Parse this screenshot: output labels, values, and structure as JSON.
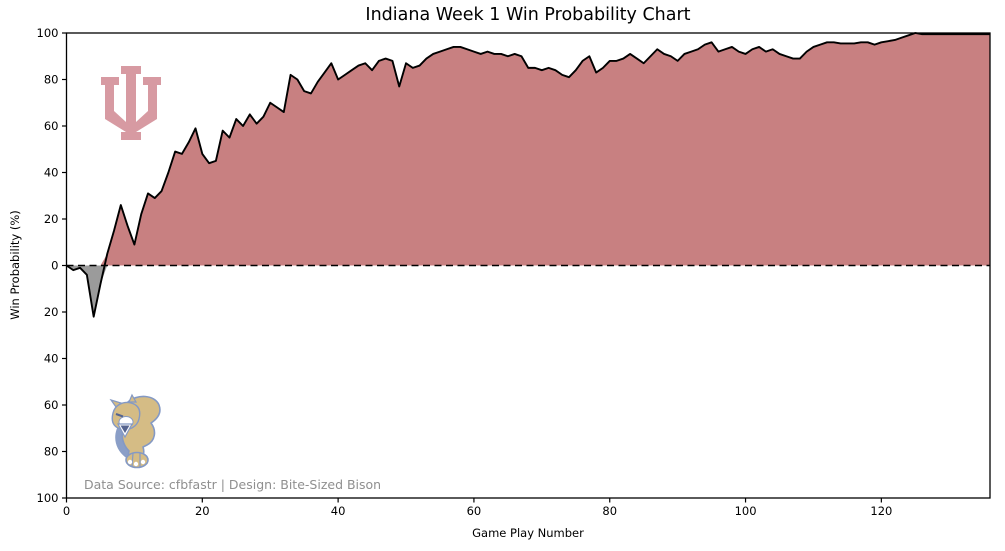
{
  "title": "Indiana Week 1 Win Probability Chart",
  "watermark": "Data Source: cfbfastr | Design: Bite-Sized Bison",
  "chart_data": {
    "type": "area",
    "title": "Indiana Week 1 Win Probability Chart",
    "xlabel": "Game Play Number",
    "ylabel": "Win Probability (%)",
    "xlim": [
      0,
      136
    ],
    "ylim": [
      -100,
      100
    ],
    "x_ticks": [
      0,
      20,
      40,
      60,
      80,
      100,
      120
    ],
    "y_ticks": [
      100,
      80,
      60,
      40,
      20,
      0,
      -20,
      -40,
      -60,
      -80,
      -100
    ],
    "y_tick_labels": [
      "100",
      "80",
      "60",
      "40",
      "20",
      "0",
      "20",
      "40",
      "60",
      "80",
      "100"
    ],
    "y_tick_label_style": "absolute-value-mirrored",
    "grid": "off",
    "legend": "none",
    "zero_line_style": "dashed-black",
    "x_is_play_index": true,
    "series": [
      {
        "name": "Indiana win probability (%)",
        "values": [
          0,
          -2,
          -1,
          -4,
          -22,
          -8,
          5,
          15,
          26,
          17,
          9,
          22,
          31,
          29,
          32,
          40,
          49,
          48,
          53,
          59,
          48,
          44,
          45,
          58,
          55,
          63,
          60,
          65,
          61,
          64,
          70,
          68,
          66,
          82,
          80,
          75,
          74,
          79,
          83,
          87,
          80,
          82,
          84,
          86,
          87,
          84,
          88,
          89,
          88,
          77,
          87,
          85,
          86,
          89,
          91,
          92,
          93,
          94,
          94,
          93,
          92,
          91,
          92,
          91,
          91,
          90,
          91,
          90,
          85,
          85,
          84,
          85,
          84,
          82,
          81,
          84,
          88,
          90,
          83,
          85,
          88,
          88,
          89,
          91,
          89,
          87,
          90,
          93,
          91,
          90,
          88,
          91,
          92,
          93,
          95,
          96,
          92,
          93,
          94,
          92,
          91,
          93,
          94,
          92,
          93,
          91,
          90,
          89,
          89,
          92,
          94,
          95,
          96,
          96,
          95.5,
          95.5,
          95.5,
          96,
          96,
          95,
          96,
          96.5,
          97,
          98,
          99,
          100,
          99.5,
          99.5,
          99.5,
          99.5,
          99.5,
          99.5,
          99.5,
          99.5,
          99.5,
          99.5,
          99.5
        ]
      }
    ],
    "fill_above_zero_color": "#c88081",
    "fill_below_zero_color": "#9b9b9b",
    "line_color": "#000000",
    "annotations": [
      "Indiana IU trident logo upper-left",
      "FIU golden panther logo lower-left"
    ]
  },
  "logos": {
    "iu": {
      "name": "indiana-iu-trident",
      "color": "#d79aa2"
    },
    "panther": {
      "name": "fiu-golden-panther",
      "gold": "#d5bc85",
      "blue": "#8499c4",
      "dark": "#55648f",
      "white": "#ffffff"
    }
  }
}
